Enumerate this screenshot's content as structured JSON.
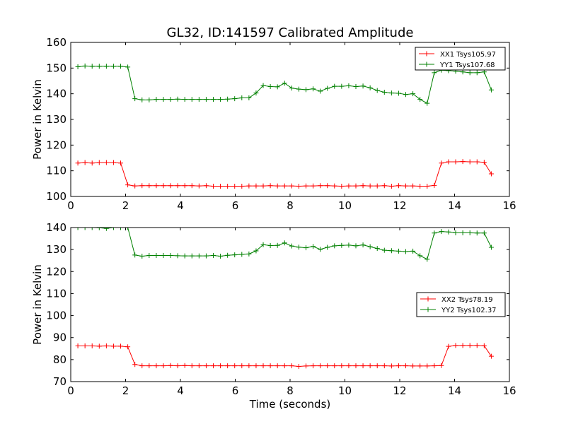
{
  "chart_data": [
    {
      "type": "line",
      "title": "GL32, ID:141597 Calibrated Amplitude",
      "xlabel": "",
      "ylabel": "Power in Kelvin",
      "xlim": [
        0,
        16
      ],
      "ylim": [
        100,
        160
      ],
      "xticks": [
        0,
        2,
        4,
        6,
        8,
        10,
        12,
        14,
        16
      ],
      "yticks": [
        100,
        110,
        120,
        130,
        140,
        150,
        160
      ],
      "legend_position": "top-right",
      "x": [
        0.26,
        0.52,
        0.78,
        1.04,
        1.3,
        1.56,
        1.82,
        2.08,
        2.34,
        2.6,
        2.86,
        3.12,
        3.38,
        3.64,
        3.9,
        4.16,
        4.42,
        4.68,
        4.94,
        5.2,
        5.46,
        5.72,
        5.98,
        6.24,
        6.5,
        6.76,
        7.02,
        7.28,
        7.54,
        7.8,
        8.06,
        8.32,
        8.58,
        8.84,
        9.1,
        9.36,
        9.62,
        9.88,
        10.14,
        10.4,
        10.66,
        10.92,
        11.18,
        11.44,
        11.7,
        11.96,
        12.22,
        12.48,
        12.74,
        13.0,
        13.26,
        13.52,
        13.78,
        14.04,
        14.3,
        14.56,
        14.82,
        15.08,
        15.34
      ],
      "series": [
        {
          "name": "XX1 Tsys105.97",
          "color": "#ff0000",
          "values": [
            113.0,
            113.2,
            113.0,
            113.2,
            113.2,
            113.2,
            113.0,
            104.5,
            104.1,
            104.2,
            104.2,
            104.2,
            104.2,
            104.2,
            104.2,
            104.2,
            104.2,
            104.1,
            104.2,
            104.0,
            104.0,
            104.0,
            104.0,
            104.0,
            104.1,
            104.1,
            104.1,
            104.2,
            104.1,
            104.1,
            104.1,
            104.0,
            104.1,
            104.1,
            104.2,
            104.2,
            104.1,
            104.0,
            104.1,
            104.1,
            104.2,
            104.1,
            104.1,
            104.2,
            104.0,
            104.2,
            104.1,
            104.1,
            104.0,
            104.0,
            104.3,
            113.0,
            113.5,
            113.5,
            113.6,
            113.5,
            113.5,
            113.3,
            108.8
          ]
        },
        {
          "name": "YY1 Tsys107.68",
          "color": "#008000",
          "values": [
            150.5,
            150.8,
            150.7,
            150.7,
            150.7,
            150.7,
            150.7,
            150.4,
            138.1,
            137.6,
            137.6,
            137.8,
            137.8,
            137.8,
            137.9,
            137.8,
            137.8,
            137.8,
            137.8,
            137.8,
            137.8,
            137.9,
            138.1,
            138.4,
            138.4,
            140.3,
            143.2,
            142.8,
            142.7,
            144.1,
            142.2,
            141.8,
            141.6,
            141.9,
            141.0,
            142.1,
            142.9,
            142.9,
            143.1,
            142.8,
            143.0,
            142.3,
            141.3,
            140.6,
            140.3,
            140.2,
            139.7,
            140.0,
            137.8,
            136.3,
            148.2,
            149.2,
            149.0,
            148.8,
            148.5,
            148.2,
            148.2,
            148.5,
            141.5
          ]
        }
      ]
    },
    {
      "type": "line",
      "title": "",
      "xlabel": "Time (seconds)",
      "ylabel": "Power in Kelvin",
      "xlim": [
        0,
        16
      ],
      "ylim": [
        70,
        140
      ],
      "xticks": [
        0,
        2,
        4,
        6,
        8,
        10,
        12,
        14,
        16
      ],
      "yticks": [
        70,
        80,
        90,
        100,
        110,
        120,
        130,
        140
      ],
      "legend_position": "center-right",
      "x": [
        0.26,
        0.52,
        0.78,
        1.04,
        1.3,
        1.56,
        1.82,
        2.08,
        2.34,
        2.6,
        2.86,
        3.12,
        3.38,
        3.64,
        3.9,
        4.16,
        4.42,
        4.68,
        4.94,
        5.2,
        5.46,
        5.72,
        5.98,
        6.24,
        6.5,
        6.76,
        7.02,
        7.28,
        7.54,
        7.8,
        8.06,
        8.32,
        8.58,
        8.84,
        9.1,
        9.36,
        9.62,
        9.88,
        10.14,
        10.4,
        10.66,
        10.92,
        11.18,
        11.44,
        11.7,
        11.96,
        12.22,
        12.48,
        12.74,
        13.0,
        13.26,
        13.52,
        13.78,
        14.04,
        14.3,
        14.56,
        14.82,
        15.08,
        15.34
      ],
      "series": [
        {
          "name": "XX2 Tsys78.19",
          "color": "#ff0000",
          "values": [
            86.2,
            86.2,
            86.2,
            86.1,
            86.2,
            86.1,
            86.1,
            85.8,
            77.8,
            77.2,
            77.2,
            77.2,
            77.2,
            77.3,
            77.2,
            77.3,
            77.2,
            77.2,
            77.2,
            77.2,
            77.2,
            77.2,
            77.2,
            77.2,
            77.2,
            77.2,
            77.2,
            77.2,
            77.2,
            77.2,
            77.2,
            76.9,
            77.1,
            77.2,
            77.2,
            77.2,
            77.2,
            77.2,
            77.2,
            77.2,
            77.2,
            77.2,
            77.2,
            77.2,
            77.1,
            77.2,
            77.2,
            77.1,
            77.1,
            77.1,
            77.2,
            77.3,
            86.0,
            86.4,
            86.4,
            86.4,
            86.4,
            86.3,
            81.5
          ]
        },
        {
          "name": "YY2 Tsys102.37",
          "color": "#008000",
          "values": [
            140.0,
            140.0,
            140.0,
            139.9,
            139.6,
            140.0,
            140.0,
            140.0,
            127.5,
            127.0,
            127.3,
            127.3,
            127.3,
            127.3,
            127.2,
            127.1,
            127.1,
            127.1,
            127.1,
            127.3,
            127.0,
            127.4,
            127.6,
            127.8,
            128.0,
            129.4,
            132.2,
            131.8,
            131.9,
            133.0,
            131.6,
            131.1,
            130.8,
            131.4,
            130.1,
            131.0,
            131.7,
            131.9,
            132.0,
            131.7,
            132.1,
            131.3,
            130.5,
            129.7,
            129.5,
            129.3,
            129.1,
            129.3,
            127.2,
            125.6,
            137.5,
            138.2,
            138.0,
            137.6,
            137.6,
            137.6,
            137.5,
            137.5,
            131.0
          ]
        }
      ]
    }
  ]
}
